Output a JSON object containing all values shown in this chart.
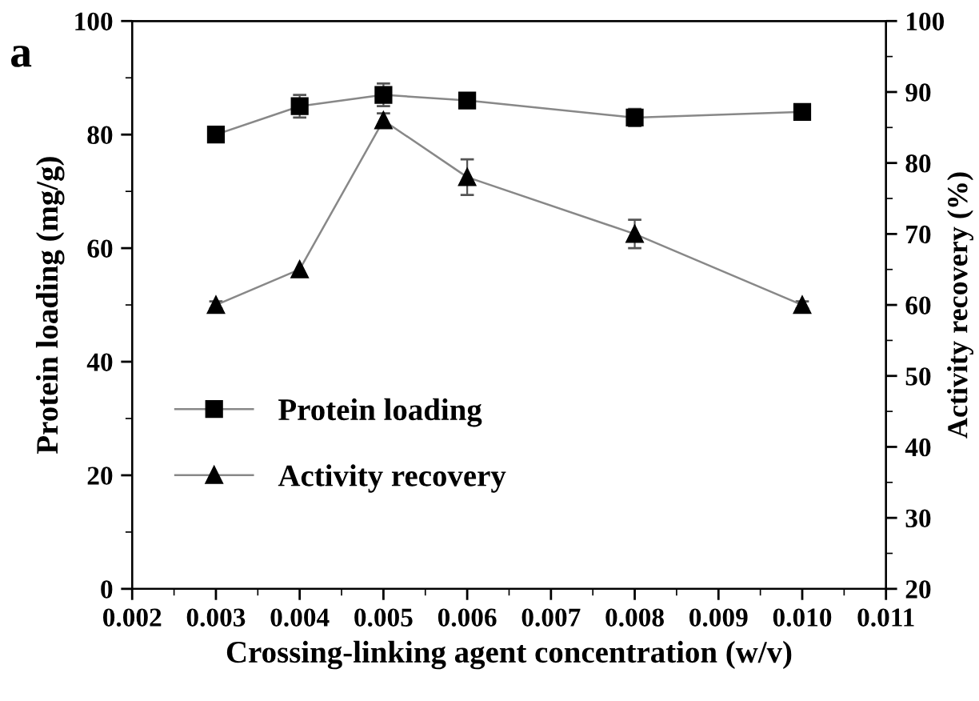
{
  "chart_data": {
    "type": "line",
    "xlabel": "Crossing-linking agent concentration (w/v)",
    "ylabel": "Protein loading (mg/g)",
    "y2label": "Activity recovery (%)",
    "annotations": [
      "a"
    ],
    "x": [
      0.003,
      0.004,
      0.005,
      0.006,
      0.008,
      0.01
    ],
    "series": [
      {
        "name": "Protein loading",
        "color": "#000000",
        "marker": "square",
        "values": [
          80,
          85,
          87,
          86,
          83,
          84
        ],
        "errors": [
          null,
          2,
          2,
          null,
          1.5,
          null
        ]
      },
      {
        "name": "Activity recovery",
        "color": "#000000",
        "marker": "triangle",
        "axis": "y2",
        "values": [
          60,
          65,
          86,
          78,
          70,
          60
        ],
        "errors": [
          0.5,
          null,
          1,
          2.5,
          2,
          0.5
        ]
      }
    ],
    "xlim": [
      0.002,
      0.011
    ],
    "xticks": [
      {
        "value": 0.002,
        "label": "0.002"
      },
      {
        "value": 0.003,
        "label": "0.003"
      },
      {
        "value": 0.004,
        "label": "0.004"
      },
      {
        "value": 0.005,
        "label": "0.005"
      },
      {
        "value": 0.006,
        "label": "0.006"
      },
      {
        "value": 0.007,
        "label": "0.007"
      },
      {
        "value": 0.008,
        "label": "0.008"
      },
      {
        "value": 0.009,
        "label": "0.009"
      },
      {
        "value": 0.01,
        "label": "0.010"
      },
      {
        "value": 0.011,
        "label": "0.011"
      }
    ],
    "ylim": [
      0,
      100
    ],
    "yticks": [
      0,
      20,
      40,
      60,
      80,
      100
    ],
    "y2lim": [
      20,
      100
    ],
    "y2ticks": [
      20,
      30,
      40,
      50,
      60,
      70,
      80,
      90,
      100
    ],
    "legend": "bottom left",
    "grid": false,
    "line_style": "solid"
  }
}
